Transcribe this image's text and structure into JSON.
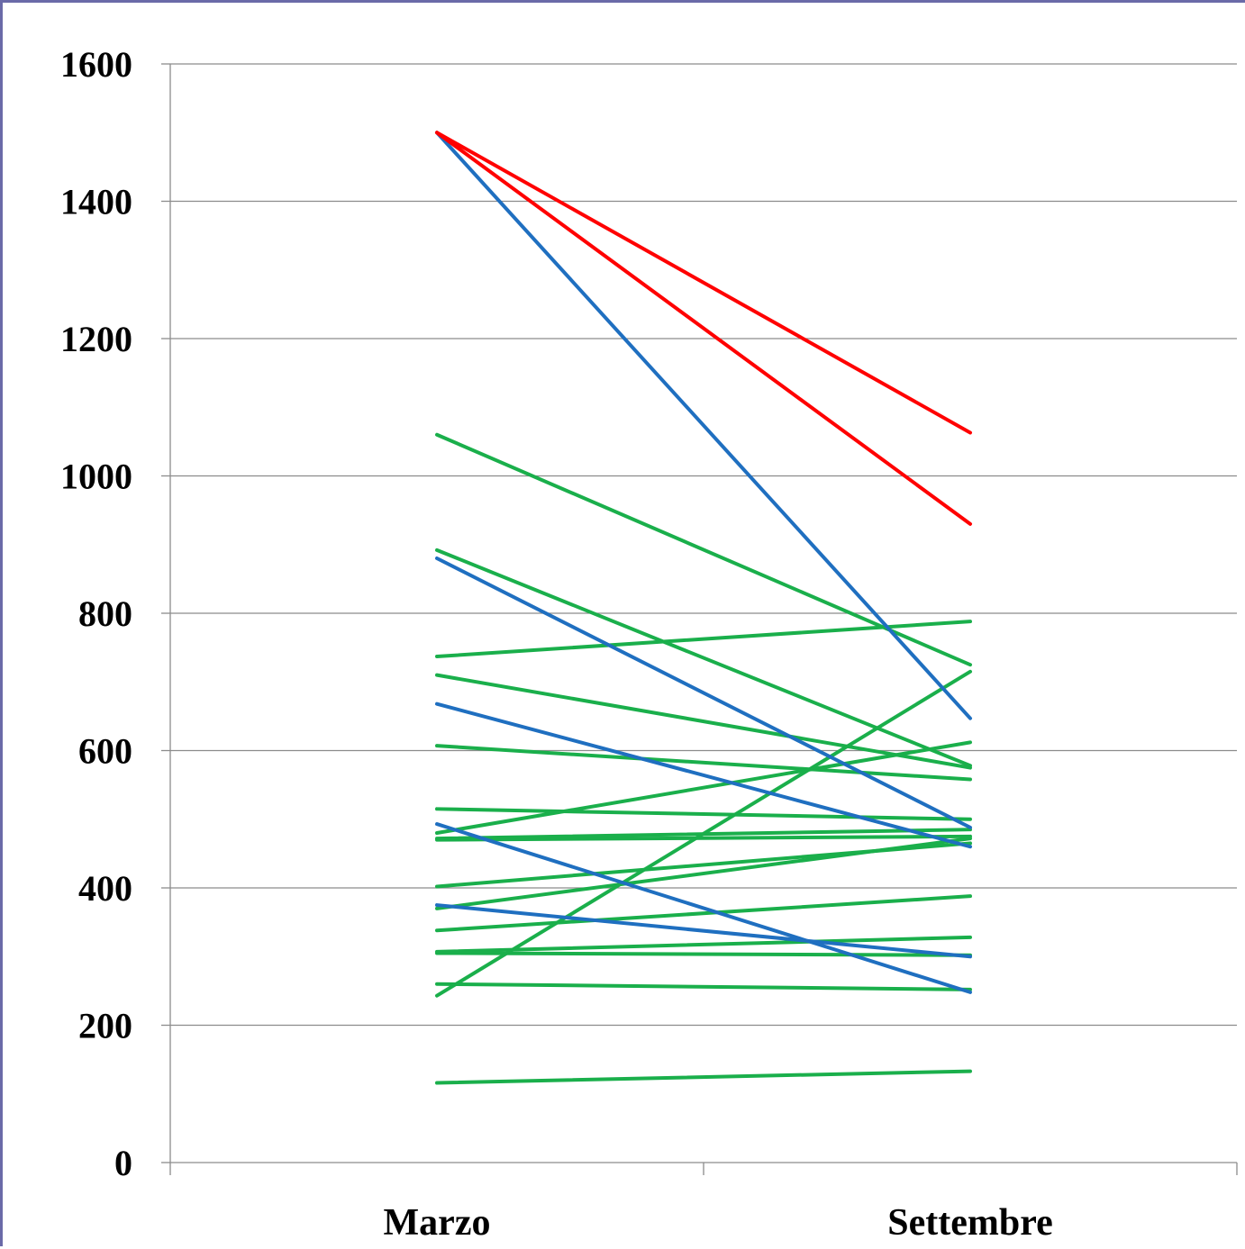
{
  "chart_data": {
    "type": "line",
    "categories": [
      "Marzo",
      "Settembre"
    ],
    "ylim": [
      0,
      1600
    ],
    "yticks": [
      "0",
      "200",
      "400",
      "600",
      "800",
      "1000",
      "1200",
      "1400",
      "1600"
    ],
    "grid": true,
    "colors": {
      "red": "#ff0000",
      "blue": "#1f6fc0",
      "green": "#1aaf4b"
    },
    "series": [
      {
        "color": "red",
        "values": [
          1500,
          1063
        ]
      },
      {
        "color": "red",
        "values": [
          1500,
          930
        ]
      },
      {
        "color": "blue",
        "values": [
          1500,
          647
        ]
      },
      {
        "color": "blue",
        "values": [
          880,
          488
        ]
      },
      {
        "color": "blue",
        "values": [
          668,
          460
        ]
      },
      {
        "color": "blue",
        "values": [
          493,
          248
        ]
      },
      {
        "color": "blue",
        "values": [
          375,
          300
        ]
      },
      {
        "color": "green",
        "values": [
          1060,
          725
        ]
      },
      {
        "color": "green",
        "values": [
          892,
          578
        ]
      },
      {
        "color": "green",
        "values": [
          737,
          788
        ]
      },
      {
        "color": "green",
        "values": [
          710,
          575
        ]
      },
      {
        "color": "green",
        "values": [
          607,
          558
        ]
      },
      {
        "color": "green",
        "values": [
          515,
          500
        ]
      },
      {
        "color": "green",
        "values": [
          480,
          612
        ]
      },
      {
        "color": "green",
        "values": [
          472,
          485
        ]
      },
      {
        "color": "green",
        "values": [
          470,
          475
        ]
      },
      {
        "color": "green",
        "values": [
          402,
          465
        ]
      },
      {
        "color": "green",
        "values": [
          370,
          472
        ]
      },
      {
        "color": "green",
        "values": [
          338,
          388
        ]
      },
      {
        "color": "green",
        "values": [
          307,
          328
        ]
      },
      {
        "color": "green",
        "values": [
          305,
          302
        ]
      },
      {
        "color": "green",
        "values": [
          260,
          252
        ]
      },
      {
        "color": "green",
        "values": [
          243,
          715
        ]
      },
      {
        "color": "green",
        "values": [
          116,
          133
        ]
      }
    ]
  }
}
